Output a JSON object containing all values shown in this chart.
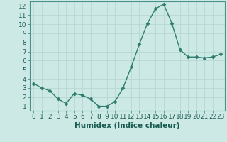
{
  "x": [
    0,
    1,
    2,
    3,
    4,
    5,
    6,
    7,
    8,
    9,
    10,
    11,
    12,
    13,
    14,
    15,
    16,
    17,
    18,
    19,
    20,
    21,
    22,
    23
  ],
  "y": [
    3.5,
    3.0,
    2.7,
    1.8,
    1.3,
    2.4,
    2.2,
    1.8,
    1.0,
    1.0,
    1.5,
    3.0,
    5.3,
    7.8,
    10.1,
    11.7,
    12.2,
    10.1,
    7.2,
    6.4,
    6.4,
    6.3,
    6.4,
    6.7
  ],
  "line_color": "#2e7d6e",
  "marker": "D",
  "marker_size": 2.5,
  "bg_color": "#cce9e5",
  "grid_color": "#b8d8d4",
  "xlabel": "Humidex (Indice chaleur)",
  "xlim": [
    -0.5,
    23.5
  ],
  "ylim": [
    0.5,
    12.5
  ],
  "yticks": [
    1,
    2,
    3,
    4,
    5,
    6,
    7,
    8,
    9,
    10,
    11,
    12
  ],
  "xticks": [
    0,
    1,
    2,
    3,
    4,
    5,
    6,
    7,
    8,
    9,
    10,
    11,
    12,
    13,
    14,
    15,
    16,
    17,
    18,
    19,
    20,
    21,
    22,
    23
  ],
  "label_fontsize": 7.5,
  "tick_fontsize": 6.5
}
